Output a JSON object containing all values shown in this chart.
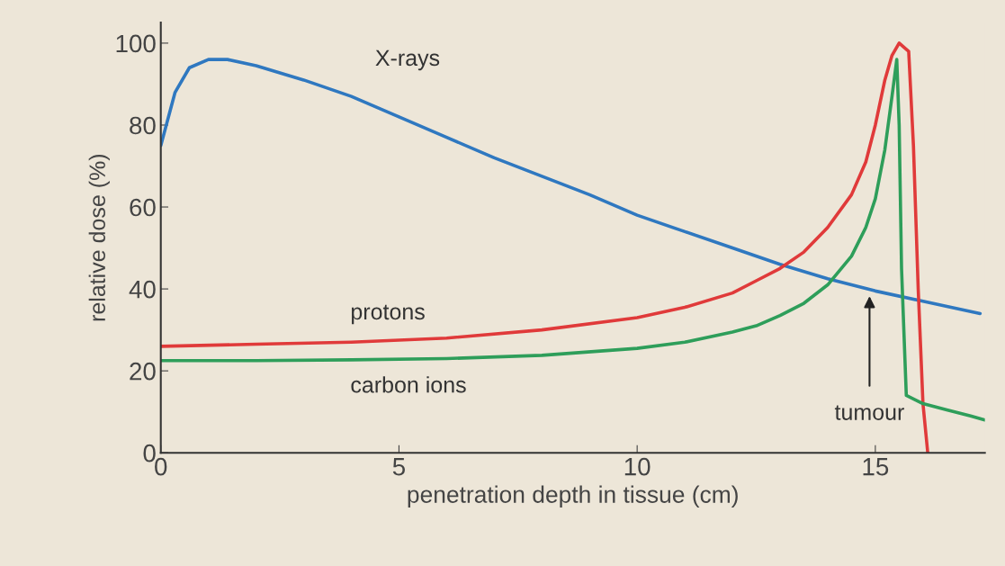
{
  "chart_data": {
    "type": "line",
    "xlabel": "penetration depth in tissue (cm)",
    "ylabel": "relative dose (%)",
    "xlim": [
      0,
      17.3
    ],
    "ylim": [
      0,
      105
    ],
    "xticks": [
      0,
      5,
      10,
      15
    ],
    "yticks": [
      0,
      20,
      40,
      60,
      80,
      100
    ],
    "grid": false,
    "legend": false,
    "marker": "none",
    "line_style": "solid",
    "series": [
      {
        "name": "X-rays",
        "color": "#2f78c0",
        "x": [
          0,
          0.3,
          0.6,
          1.0,
          1.4,
          2.0,
          3.0,
          4.0,
          5.0,
          6.0,
          7.0,
          8.0,
          9.0,
          10.0,
          11.0,
          12.0,
          13.0,
          14.0,
          15.0,
          16.0,
          17.2
        ],
        "values": [
          75,
          88,
          94,
          96,
          96,
          94.5,
          91,
          87,
          82,
          77,
          72,
          67.5,
          63,
          58,
          54,
          50,
          46,
          42.5,
          39.5,
          37,
          34
        ]
      },
      {
        "name": "protons",
        "color": "#e03a3a",
        "x": [
          0,
          2,
          4,
          6,
          8,
          10,
          11,
          12,
          12.5,
          13,
          13.5,
          14,
          14.5,
          14.8,
          15.0,
          15.2,
          15.35,
          15.5,
          15.7,
          15.8,
          15.9,
          16.0,
          16.1
        ],
        "values": [
          26,
          26.5,
          27,
          28,
          30,
          33,
          35.5,
          39,
          42,
          45,
          49,
          55,
          63,
          71,
          80,
          91,
          97,
          100,
          98,
          75,
          40,
          12,
          0
        ]
      },
      {
        "name": "carbon ions",
        "color": "#2e9e5a",
        "x": [
          0,
          2,
          4,
          6,
          8,
          10,
          11,
          12,
          12.5,
          13,
          13.5,
          14,
          14.5,
          14.8,
          15.0,
          15.2,
          15.35,
          15.45,
          15.5,
          15.55,
          15.65,
          16.0,
          16.5,
          17.0,
          17.3
        ],
        "values": [
          22.5,
          22.5,
          22.7,
          23,
          23.8,
          25.5,
          27,
          29.5,
          31,
          33.5,
          36.5,
          41,
          48,
          55,
          62,
          74,
          87,
          96,
          80,
          45,
          14,
          12,
          10.5,
          9,
          8
        ]
      }
    ],
    "annotations": [
      "tumour"
    ]
  }
}
